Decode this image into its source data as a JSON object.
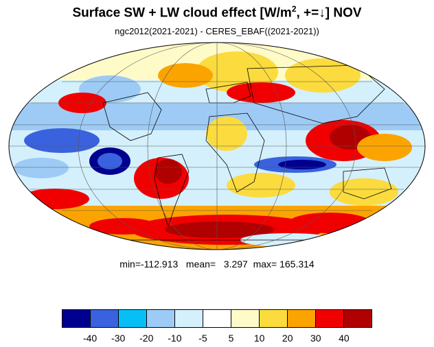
{
  "title": {
    "main": "Surface SW + LW cloud effect [W/m",
    "sup": "2",
    "tail": ", +=↓]  NOV"
  },
  "subtitle": "ngc2012(2021-2021) - CERES_EBAF((2021-2021))",
  "stats": {
    "line": "min=-112.913   mean=   3.297  max= 165.314"
  },
  "colorbar": {
    "colors": [
      "#00008f",
      "#3a62de",
      "#08bff5",
      "#9ecbf5",
      "#d4f0fc",
      "#ffffff",
      "#fffbc8",
      "#fbdb3e",
      "#fba400",
      "#f00000",
      "#b00000"
    ],
    "tick_labels": [
      "-40",
      "-30",
      "-20",
      "-10",
      "-5",
      "5",
      "10",
      "20",
      "30",
      "40"
    ]
  },
  "map": {
    "projection": "Mollweide",
    "grid": true
  }
}
